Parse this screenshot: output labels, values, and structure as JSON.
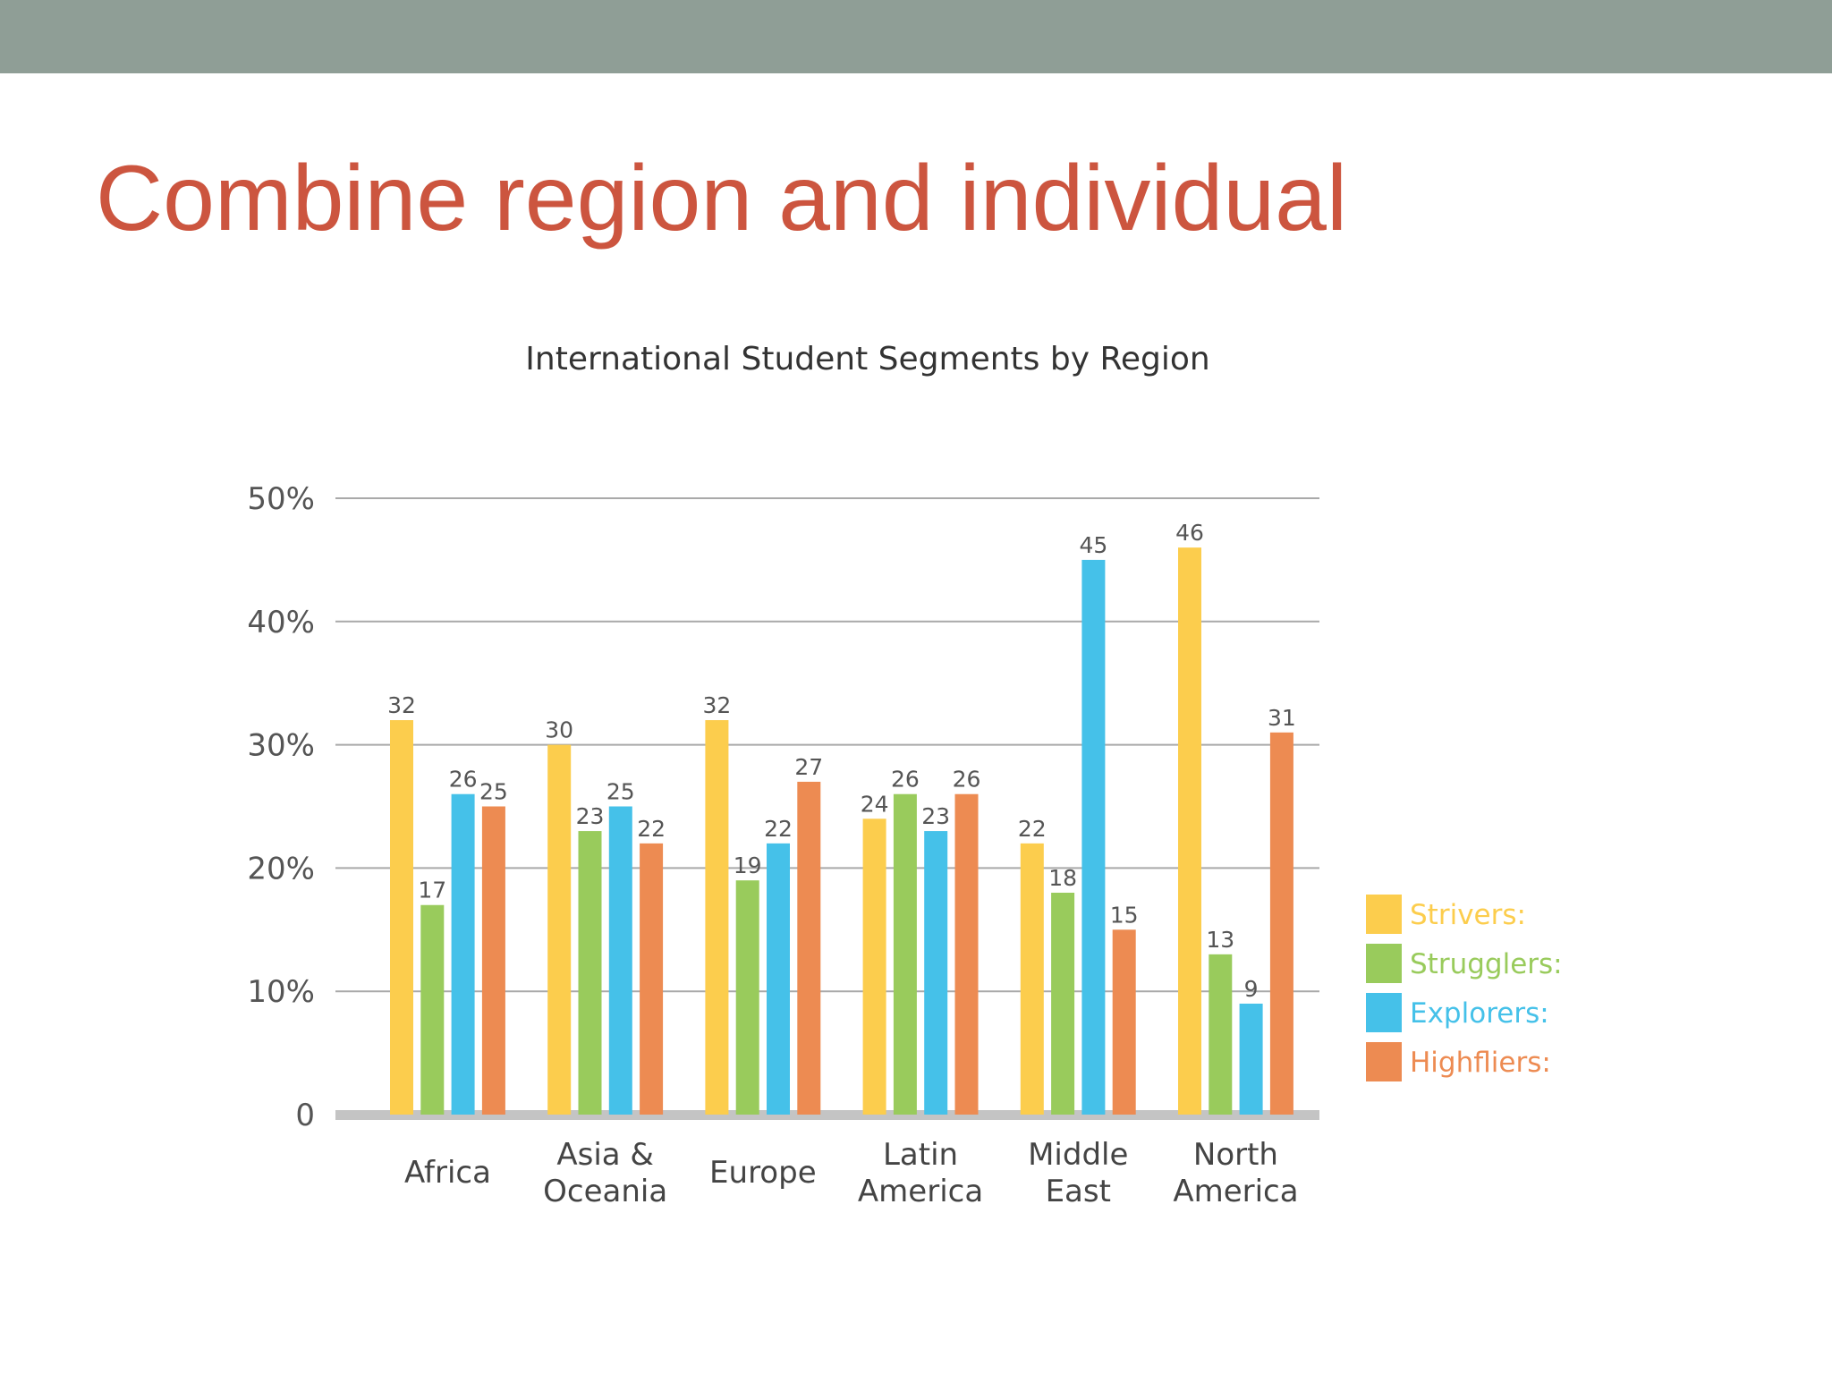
{
  "slide": {
    "title": "Combine region and individual",
    "colors": {
      "top_band": "#8f9e96",
      "title": "#cc553f",
      "gridline": "#a9a9a9",
      "baseline": "#c4c4c4"
    }
  },
  "chart_data": {
    "type": "bar",
    "title": "International Student Segments by Region",
    "xlabel": "",
    "ylabel": "",
    "ylim": [
      0,
      50
    ],
    "y_ticks": [
      {
        "value": 0,
        "label": "0"
      },
      {
        "value": 10,
        "label": "10%"
      },
      {
        "value": 20,
        "label": "20%"
      },
      {
        "value": 30,
        "label": "30%"
      },
      {
        "value": 40,
        "label": "40%"
      },
      {
        "value": 50,
        "label": "50%"
      }
    ],
    "grid": true,
    "legend_position": "right",
    "categories": [
      [
        "Africa"
      ],
      [
        "Asia &",
        "Oceania"
      ],
      [
        "Europe"
      ],
      [
        "Latin",
        "America"
      ],
      [
        "Middle",
        "East"
      ],
      [
        "North",
        "America"
      ]
    ],
    "series": [
      {
        "name": "Strivers:",
        "color": "#fccd4d",
        "values": [
          32,
          30,
          32,
          24,
          22,
          46
        ],
        "labels": [
          "32",
          "30",
          "32",
          "24",
          "22",
          "46"
        ]
      },
      {
        "name": "Strugglers:",
        "color": "#99cb5c",
        "values": [
          17,
          23,
          19,
          26,
          18,
          13
        ],
        "labels": [
          "17",
          "23",
          "19",
          "26",
          "18",
          "13"
        ]
      },
      {
        "name": "Explorers:",
        "color": "#45c1e9",
        "values": [
          26,
          25,
          22,
          23,
          45,
          9
        ],
        "labels": [
          "26",
          "25",
          "22",
          "23",
          "45",
          "9"
        ]
      },
      {
        "name": "Highfliers:",
        "color": "#ed8b52",
        "values": [
          25,
          22,
          27,
          26,
          15,
          31
        ],
        "labels": [
          "25",
          "22",
          "27",
          "26",
          "15",
          "31"
        ]
      }
    ]
  }
}
